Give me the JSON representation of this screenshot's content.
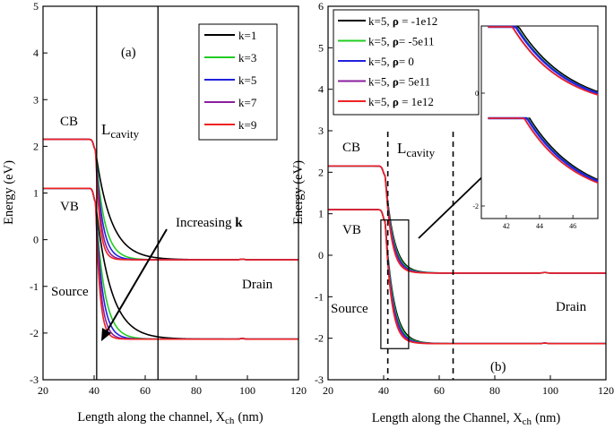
{
  "chart_data": [
    {
      "panel": "(a)",
      "type": "line",
      "xlabel": "Length along the channel, X",
      "xlabel_sub": "ch",
      "xlabel_unit": "(nm)",
      "ylabel": "Energy (eV)",
      "xlim": [
        20,
        120
      ],
      "ylim": [
        -3,
        5
      ],
      "xticks": [
        20,
        40,
        60,
        80,
        100,
        120
      ],
      "yticks": [
        -3,
        -2,
        -1,
        0,
        1,
        2,
        3,
        4,
        5
      ],
      "vlines": [
        41,
        65
      ],
      "annotations": {
        "cb": "CB",
        "vb": "VB",
        "lcav_main": "L",
        "lcav_sub": "cavity",
        "source": "Source",
        "drain": "Drain",
        "increasing": "Increasing ",
        "increasing_k": "k"
      },
      "series": [
        {
          "name": "k=1",
          "color": "#000000",
          "decay": 6.0
        },
        {
          "name": "k=3",
          "color": "#22cc22",
          "decay": 3.4
        },
        {
          "name": "k=5",
          "color": "#2222dd",
          "decay": 2.6
        },
        {
          "name": "k=7",
          "color": "#8a1f9e",
          "decay": 2.0
        },
        {
          "name": "k=9",
          "color": "#ee2222",
          "decay": 1.6
        }
      ],
      "cb_levels": {
        "source": 2.15,
        "drain": -0.43
      },
      "vb_levels": {
        "source": 1.1,
        "drain": -2.13
      }
    },
    {
      "panel": "(b)",
      "type": "line",
      "xlabel": "Length along the Channel, X",
      "xlabel_sub": "ch",
      "xlabel_unit": "(nm)",
      "ylabel": "Energy (eV)",
      "xlim": [
        20,
        120
      ],
      "ylim": [
        -3,
        6
      ],
      "xticks": [
        20,
        40,
        60,
        80,
        100,
        120
      ],
      "yticks": [
        -3,
        -2,
        -1,
        0,
        1,
        2,
        3,
        4,
        5,
        6
      ],
      "vlines": [
        41.5,
        65
      ],
      "annotations": {
        "cb": "CB",
        "vb": "VB",
        "lcav_main": "L",
        "lcav_sub": "cavity",
        "source": "Source",
        "drain": "Drain"
      },
      "legend_prefix": "k=5, ",
      "legend_rho": "ρ",
      "series": [
        {
          "name": "k=5, ρ = -1e12",
          "rho_value": " = -1e12",
          "color": "#000000",
          "decay": 3.0
        },
        {
          "name": "k=5, ρ= -5e11",
          "rho_value": "= -5e11",
          "color": "#22cc22",
          "decay": 2.8
        },
        {
          "name": "k=5, ρ= 0",
          "rho_value": "= 0",
          "color": "#2222dd",
          "decay": 2.6
        },
        {
          "name": "k=5, ρ= 5e11",
          "rho_value": "= 5e11",
          "color": "#8a1f9e",
          "decay": 2.4
        },
        {
          "name": "k=5, ρ = 1e12",
          "rho_value": " = 1e12",
          "color": "#ee2222",
          "decay": 2.2
        }
      ],
      "cb_levels": {
        "source": 2.15,
        "drain": -0.43
      },
      "vb_levels": {
        "source": 1.1,
        "drain": -2.13
      },
      "zoom_box": {
        "x": [
          39,
          49
        ],
        "y": [
          -2.25,
          0.85
        ]
      },
      "inset": {
        "xlim": [
          40.5,
          47.5
        ],
        "xticks": [
          42,
          44,
          46
        ],
        "ytick_labels": [
          "0",
          "-2"
        ]
      }
    }
  ]
}
